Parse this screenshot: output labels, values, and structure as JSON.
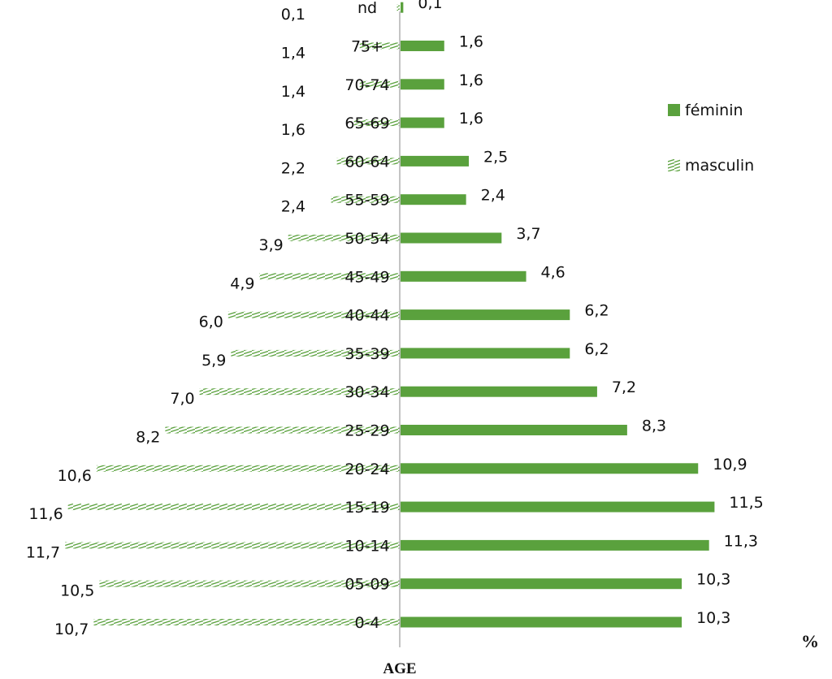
{
  "chart_data": {
    "type": "bar",
    "orientation": "horizontal",
    "chart_subtype": "population-pyramid",
    "categories": [
      "0-4",
      "05-09",
      "10-14",
      "15-19",
      "20-24",
      "25-29",
      "30-34",
      "35-39",
      "40-44",
      "45-49",
      "50-54",
      "55-59",
      "60-64",
      "65-69",
      "70-74",
      "75+",
      "nd"
    ],
    "series": [
      {
        "name": "féminin",
        "side": "right",
        "color": "#5aa13d",
        "fill": "solid",
        "values": [
          10.3,
          10.3,
          11.3,
          11.5,
          10.9,
          8.3,
          7.2,
          6.2,
          6.2,
          4.6,
          3.7,
          2.4,
          2.5,
          1.6,
          1.6,
          1.6,
          0.1
        ],
        "labels": [
          "10,3",
          "10,3",
          "11,3",
          "11,5",
          "10,9",
          "8,3",
          "7,2",
          "6,2",
          "6,2",
          "4,6",
          "3,7",
          "2,4",
          "2,5",
          "1,6",
          "1,6",
          "1,6",
          "0,1"
        ]
      },
      {
        "name": "masculin",
        "side": "left",
        "color": "#5aa13d",
        "fill": "hatched",
        "values": [
          10.7,
          10.5,
          11.7,
          11.6,
          10.6,
          8.2,
          7.0,
          5.9,
          6.0,
          4.9,
          3.9,
          2.4,
          2.2,
          1.6,
          1.4,
          1.4,
          0.1
        ],
        "labels": [
          "10,7",
          "10,5",
          "11,7",
          "11,6",
          "10,6",
          "8,2",
          "7,0",
          "5,9",
          "6,0",
          "4,9",
          "3,9",
          "2,4",
          "2,2",
          "1,6",
          "1,4",
          "1,4",
          "0,1"
        ]
      }
    ],
    "xlabel": "AGE",
    "unit_label": "%",
    "legend": {
      "placement": "right",
      "entries": [
        "féminin",
        "masculin"
      ]
    },
    "grid": false
  }
}
